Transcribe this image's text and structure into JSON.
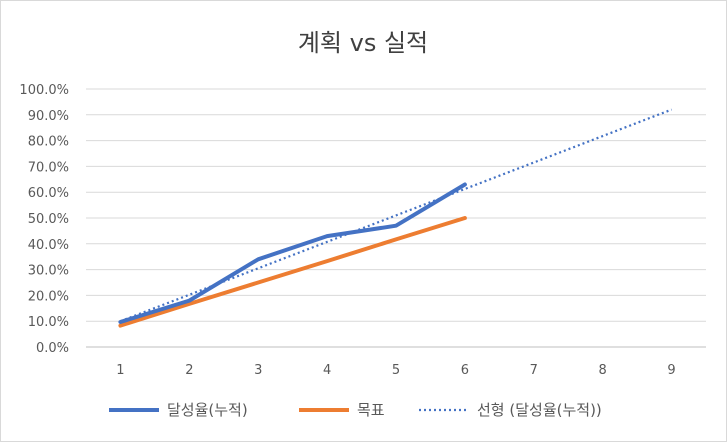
{
  "chart_data": {
    "type": "line",
    "title": "계획 vs 실적",
    "x": [
      1,
      2,
      3,
      4,
      5,
      6,
      7,
      8,
      9
    ],
    "xlim": [
      1,
      9
    ],
    "ylim": [
      0,
      100
    ],
    "y_tick_labels": [
      "0.0%",
      "10.0%",
      "20.0%",
      "30.0%",
      "40.0%",
      "50.0%",
      "60.0%",
      "70.0%",
      "80.0%",
      "90.0%",
      "100.0%"
    ],
    "x_tick_labels": [
      "1",
      "2",
      "3",
      "4",
      "5",
      "6",
      "7",
      "8",
      "9"
    ],
    "grid": "horizontal",
    "legend_position": "bottom",
    "series": [
      {
        "name": "달성율(누적)",
        "color": "#4472c4",
        "style": "solid",
        "x": [
          1,
          2,
          3,
          4,
          5,
          6
        ],
        "values": [
          9.7,
          18.0,
          34.0,
          43.0,
          47.0,
          63.0
        ]
      },
      {
        "name": "목표",
        "color": "#ed7d31",
        "style": "solid",
        "x": [
          1,
          2,
          3,
          4,
          5,
          6
        ],
        "values": [
          8.3,
          16.7,
          25.0,
          33.3,
          41.7,
          50.0
        ]
      },
      {
        "name": "선형 (달성율(누적))",
        "color": "#4472c4",
        "style": "dotted",
        "x": [
          1,
          9
        ],
        "values": [
          10.0,
          92.0
        ]
      }
    ]
  }
}
